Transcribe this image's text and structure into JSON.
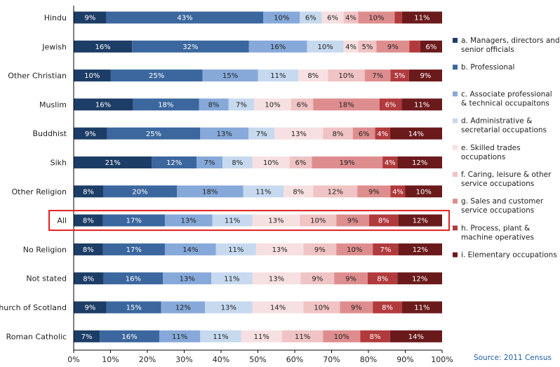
{
  "chart_data": {
    "type": "bar",
    "orientation": "horizontal",
    "stacked": true,
    "categories": [
      "Hindu",
      "Jewish",
      "Other Christian",
      "Muslim",
      "Buddhist",
      "Sikh",
      "Other Religion",
      "All",
      "No Religion",
      "Not stated",
      "Church of Scotland",
      "Roman Catholic"
    ],
    "highlight_category": "All",
    "series": [
      {
        "name": "a. Managers, directors and senior officials",
        "color": "#1c3d66",
        "values": [
          9,
          16,
          10,
          16,
          9,
          21,
          8,
          8,
          8,
          8,
          9,
          7
        ]
      },
      {
        "name": "b. Professional",
        "color": "#3b679e",
        "values": [
          43,
          32,
          25,
          18,
          25,
          12,
          20,
          17,
          17,
          16,
          15,
          16
        ]
      },
      {
        "name": "c. Associate professional & technical occupaitons",
        "color": "#86a9d9",
        "values": [
          10,
          16,
          15,
          8,
          13,
          7,
          18,
          13,
          14,
          13,
          12,
          11
        ]
      },
      {
        "name": "d. Administrative & secretarial occupations",
        "color": "#c6d9ef",
        "values": [
          6,
          10,
          11,
          7,
          7,
          8,
          11,
          11,
          11,
          11,
          13,
          11
        ]
      },
      {
        "name": "e. Skilled trades occupations",
        "color": "#f7e0e1",
        "values": [
          6,
          4,
          8,
          10,
          13,
          10,
          8,
          13,
          13,
          13,
          14,
          11
        ]
      },
      {
        "name": "f. Caring, leisure & other service occupations",
        "color": "#f0c3c4",
        "values": [
          4,
          5,
          10,
          6,
          8,
          6,
          12,
          10,
          9,
          9,
          10,
          11
        ]
      },
      {
        "name": "g. Sales and customer service occupations",
        "color": "#de8d8e",
        "values": [
          10,
          9,
          7,
          18,
          6,
          19,
          9,
          9,
          10,
          9,
          9,
          10
        ]
      },
      {
        "name": "h. Process, plant & machine operatives",
        "color": "#b13a3c",
        "values": [
          2,
          3,
          5,
          6,
          4,
          4,
          4,
          8,
          7,
          8,
          8,
          8
        ]
      },
      {
        "name": "i. Elementary occupations",
        "color": "#6b1a1c",
        "values": [
          11,
          6,
          9,
          11,
          14,
          12,
          10,
          12,
          12,
          12,
          11,
          14
        ]
      }
    ],
    "labels": [
      [
        "9%",
        "43%",
        "10%",
        "6%",
        "6%",
        "4%",
        "10%",
        "",
        "11%"
      ],
      [
        "16%",
        "32%",
        "16%",
        "10%",
        "4%",
        "5%",
        "9%",
        "",
        "6%"
      ],
      [
        "10%",
        "25%",
        "15%",
        "11%",
        "8%",
        "10%",
        "7%",
        "5%",
        "9%"
      ],
      [
        "16%",
        "18%",
        "8%",
        "7%",
        "10%",
        "6%",
        "18%",
        "6%",
        "11%"
      ],
      [
        "9%",
        "25%",
        "13%",
        "7%",
        "13%",
        "8%",
        "6%",
        "4%",
        "14%"
      ],
      [
        "21%",
        "12%",
        "7%",
        "8%",
        "10%",
        "6%",
        "19%",
        "4%",
        "12%"
      ],
      [
        "8%",
        "20%",
        "18%",
        "11%",
        "8%",
        "12%",
        "9%",
        "4%",
        "10%"
      ],
      [
        "8%",
        "17%",
        "13%",
        "11%",
        "13%",
        "10%",
        "9%",
        "8%",
        "12%"
      ],
      [
        "8%",
        "17%",
        "14%",
        "11%",
        "13%",
        "9%",
        "10%",
        "7%",
        "12%"
      ],
      [
        "8%",
        "16%",
        "13%",
        "11%",
        "13%",
        "9%",
        "9%",
        "8%",
        "12%"
      ],
      [
        "9%",
        "15%",
        "12%",
        "13%",
        "14%",
        "10%",
        "9%",
        "8%",
        "11%"
      ],
      [
        "7%",
        "16%",
        "11%",
        "11%",
        "11%",
        "11%",
        "10%",
        "8%",
        "14%"
      ]
    ],
    "xlim": [
      0,
      100
    ],
    "ticks": [
      "0%",
      "10%",
      "20%",
      "30%",
      "40%",
      "50%",
      "60%",
      "70%",
      "80%",
      "90%",
      "100%"
    ],
    "grid": false,
    "legend_position": "right",
    "highlight_color": "#e02020",
    "label_dark_color": "#ffffff",
    "label_light_color": "#222222",
    "axis_color": "#000000"
  },
  "source": "Source: 2011 Census"
}
